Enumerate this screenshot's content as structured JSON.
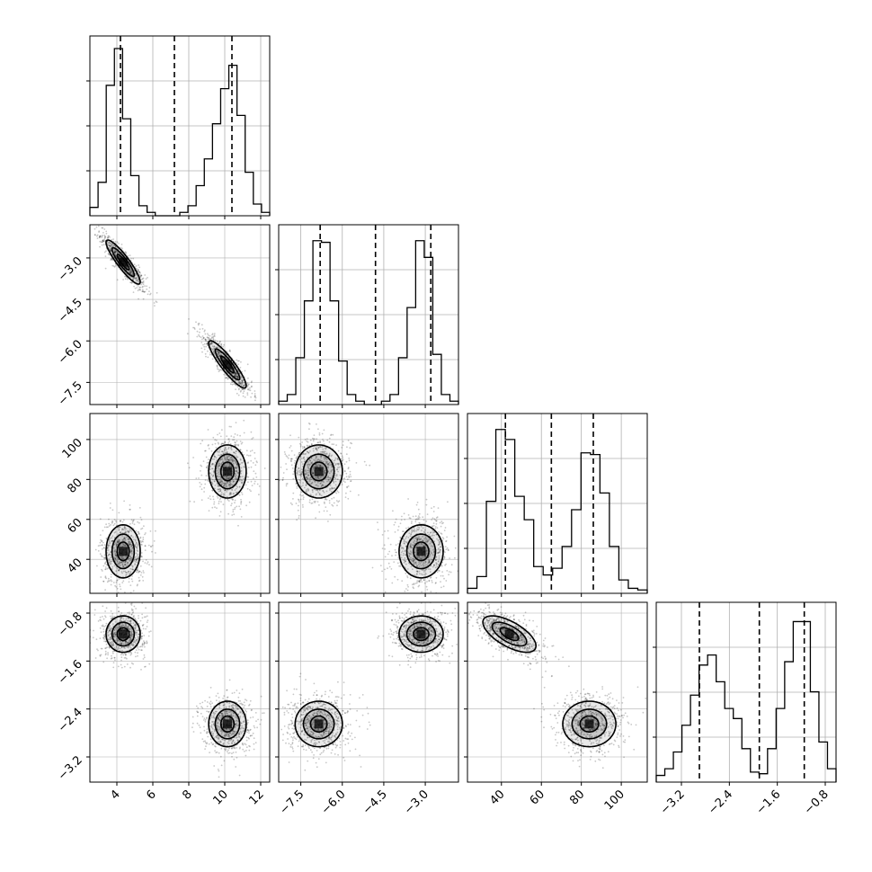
{
  "chart_data": {
    "type": "corner",
    "grid": true,
    "colors": {
      "line": "#000000",
      "density": "#000000",
      "grid": "#b0b0b0",
      "background": "#ffffff"
    },
    "params": [
      {
        "range": [
          2.5,
          12.5
        ],
        "ticks": [
          4,
          6,
          8,
          10,
          12
        ],
        "tick_labels": [
          "4",
          "6",
          "8",
          "10",
          "12"
        ],
        "quantiles": [
          4.2,
          7.2,
          10.4
        ],
        "hist": [
          0.05,
          0.2,
          0.78,
          1.0,
          0.58,
          0.24,
          0.06,
          0.02,
          0.0,
          0.0,
          0.0,
          0.02,
          0.06,
          0.18,
          0.34,
          0.55,
          0.76,
          0.9,
          0.6,
          0.26,
          0.07,
          0.02
        ]
      },
      {
        "range": [
          -8.3,
          -1.8
        ],
        "ticks": [
          -7.5,
          -6.0,
          -4.5,
          -3.0
        ],
        "tick_labels": [
          "−7.5",
          "−6.0",
          "−4.5",
          "−3.0"
        ],
        "quantiles": [
          -6.8,
          -4.8,
          -2.8
        ],
        "hist": [
          0.02,
          0.06,
          0.28,
          0.62,
          0.98,
          0.97,
          0.62,
          0.26,
          0.06,
          0.02,
          0.0,
          0.0,
          0.02,
          0.06,
          0.28,
          0.58,
          0.98,
          0.88,
          0.3,
          0.06,
          0.02
        ]
      },
      {
        "range": [
          23,
          113
        ],
        "ticks": [
          40,
          60,
          80,
          100
        ],
        "tick_labels": [
          "40",
          "60",
          "80",
          "100"
        ],
        "quantiles": [
          42,
          65,
          86
        ],
        "hist": [
          0.03,
          0.1,
          0.55,
          0.98,
          0.92,
          0.58,
          0.44,
          0.16,
          0.11,
          0.15,
          0.28,
          0.5,
          0.84,
          0.83,
          0.6,
          0.28,
          0.08,
          0.03,
          0.02
        ]
      },
      {
        "range": [
          -3.62,
          -0.62
        ],
        "ticks": [
          -3.2,
          -2.4,
          -1.6,
          -0.8
        ],
        "tick_labels": [
          "−3.2",
          "−2.4",
          "−1.6",
          "−0.8"
        ],
        "quantiles": [
          -2.9,
          -1.9,
          -1.15
        ],
        "hist": [
          0.04,
          0.08,
          0.18,
          0.34,
          0.52,
          0.7,
          0.76,
          0.6,
          0.44,
          0.38,
          0.2,
          0.06,
          0.05,
          0.2,
          0.44,
          0.72,
          0.96,
          0.96,
          0.54,
          0.24,
          0.08
        ]
      }
    ],
    "clusters": [
      {
        "center": [
          4.35,
          -3.15,
          44,
          -1.15
        ],
        "sd": [
          0.5,
          0.42,
          7,
          0.16
        ],
        "corr": [
          [
            1,
            -0.9,
            0,
            0
          ],
          [
            -0.9,
            1,
            0,
            0
          ],
          [
            0,
            0,
            1,
            -0.65
          ],
          [
            0,
            0,
            -0.65,
            1
          ]
        ]
      },
      {
        "center": [
          10.15,
          -6.85,
          84,
          -2.65
        ],
        "sd": [
          0.55,
          0.45,
          7,
          0.2
        ],
        "corr": [
          [
            1,
            -0.9,
            0,
            0
          ],
          [
            -0.9,
            1,
            0,
            0
          ],
          [
            0,
            0,
            1,
            0
          ],
          [
            0,
            0,
            0,
            1
          ]
        ]
      }
    ]
  }
}
